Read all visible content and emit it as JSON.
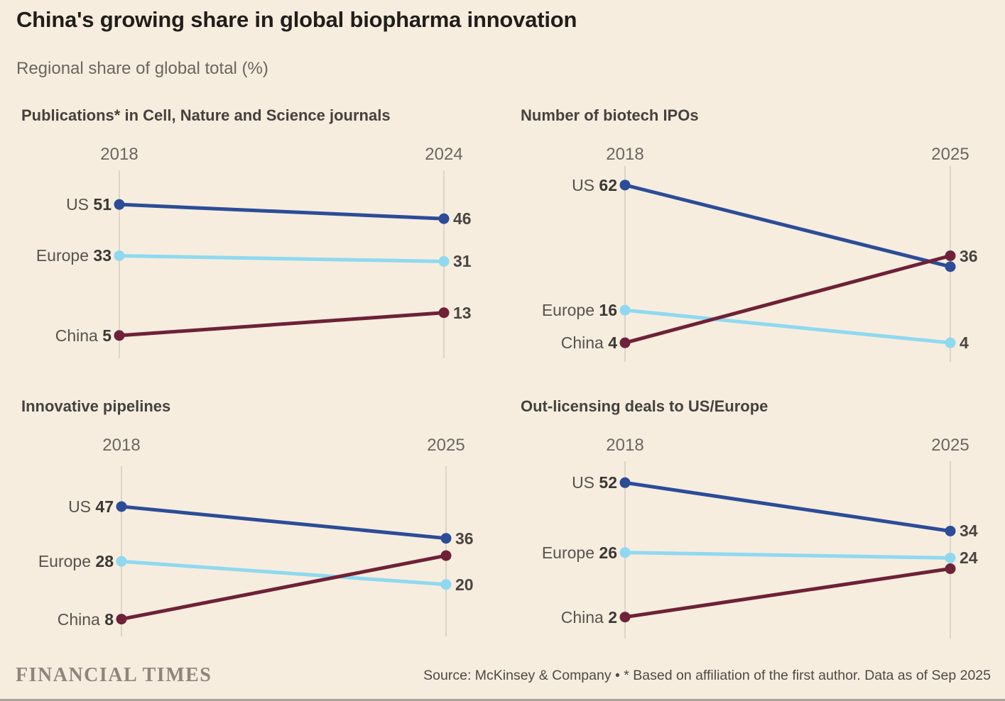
{
  "header": {
    "title": "China's growing share in global biopharma innovation",
    "subtitle": "Regional share of global total (%)"
  },
  "footer": {
    "brand": "FINANCIAL TIMES",
    "source": "Source: McKinsey & Company • * Based on affiliation of the first author. Data as of Sep 2025"
  },
  "colors": {
    "background": "#f6eddf",
    "us": "#2c4c97",
    "europe": "#8fd9f0",
    "china": "#6e2137",
    "axis_line": "#dcd5c9"
  },
  "chart_data": [
    {
      "type": "line",
      "variant": "slope",
      "title": "Publications* in Cell, Nature and Science journals",
      "x": [
        "2018",
        "2024"
      ],
      "ylim": [
        -3,
        63
      ],
      "grid": "two vertical axis lines only",
      "legend": "inline labels left of start points",
      "series": [
        {
          "name": "US",
          "color_key": "us",
          "values": [
            51,
            46
          ],
          "start_label": "US 51",
          "end_label": "46"
        },
        {
          "name": "Europe",
          "color_key": "europe",
          "values": [
            33,
            31
          ],
          "start_label": "Europe 33",
          "end_label": "31"
        },
        {
          "name": "China",
          "color_key": "china",
          "values": [
            5,
            13
          ],
          "start_label": "China 5",
          "end_label": "13"
        }
      ]
    },
    {
      "type": "line",
      "variant": "slope",
      "title": "Number of biotech IPOs",
      "x": [
        "2018",
        "2025"
      ],
      "ylim": [
        -3,
        69
      ],
      "grid": "two vertical axis lines only",
      "legend": "inline labels left of start points",
      "series": [
        {
          "name": "US",
          "color_key": "us",
          "values": [
            62,
            32
          ],
          "start_label": "US 62",
          "end_label": ""
        },
        {
          "name": "Europe",
          "color_key": "europe",
          "values": [
            16,
            4
          ],
          "start_label": "Europe 16",
          "end_label": "4"
        },
        {
          "name": "China",
          "color_key": "china",
          "values": [
            4,
            36
          ],
          "start_label": "China 4",
          "end_label": "36"
        }
      ]
    },
    {
      "type": "line",
      "variant": "slope",
      "title": "Innovative pipelines",
      "x": [
        "2018",
        "2025"
      ],
      "ylim": [
        2,
        61
      ],
      "grid": "two vertical axis lines only",
      "legend": "inline labels left of start points",
      "series": [
        {
          "name": "US",
          "color_key": "us",
          "values": [
            47,
            36
          ],
          "start_label": "US 47",
          "end_label": "36"
        },
        {
          "name": "Europe",
          "color_key": "europe",
          "values": [
            28,
            20
          ],
          "start_label": "Europe 28",
          "end_label": "20"
        },
        {
          "name": "China",
          "color_key": "china",
          "values": [
            8,
            30
          ],
          "start_label": "China 8",
          "end_label": ""
        }
      ]
    },
    {
      "type": "line",
      "variant": "slope",
      "title": "Out-licensing deals to US/Europe",
      "x": [
        "2018",
        "2025"
      ],
      "ylim": [
        -6,
        60
      ],
      "grid": "two vertical axis lines only",
      "legend": "inline labels left of start points",
      "series": [
        {
          "name": "US",
          "color_key": "us",
          "values": [
            52,
            34
          ],
          "start_label": "US 52",
          "end_label": "34"
        },
        {
          "name": "Europe",
          "color_key": "europe",
          "values": [
            26,
            24
          ],
          "start_label": "Europe 26",
          "end_label": "24"
        },
        {
          "name": "China",
          "color_key": "china",
          "values": [
            2,
            20
          ],
          "start_label": "China 2",
          "end_label": ""
        }
      ]
    }
  ]
}
